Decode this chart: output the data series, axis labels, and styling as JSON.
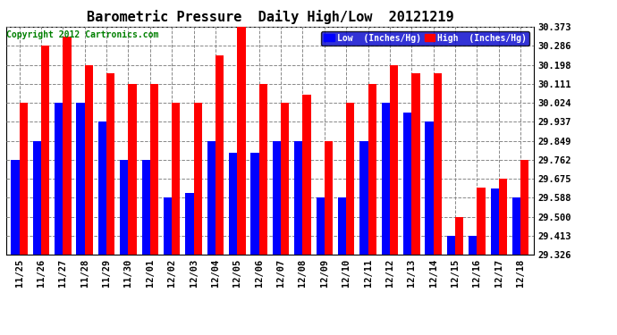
{
  "title": "Barometric Pressure  Daily High/Low  20121219",
  "copyright": "Copyright 2012 Cartronics.com",
  "dates": [
    "11/25",
    "11/26",
    "11/27",
    "11/28",
    "11/29",
    "11/30",
    "12/01",
    "12/02",
    "12/03",
    "12/04",
    "12/05",
    "12/06",
    "12/07",
    "12/08",
    "12/09",
    "12/10",
    "12/11",
    "12/12",
    "12/13",
    "12/14",
    "12/15",
    "12/16",
    "12/17",
    "12/18"
  ],
  "high": [
    30.024,
    30.286,
    30.326,
    30.198,
    30.16,
    30.111,
    30.111,
    30.024,
    30.024,
    30.242,
    30.373,
    30.111,
    30.024,
    30.06,
    29.849,
    30.024,
    30.111,
    30.198,
    30.16,
    30.16,
    29.5,
    29.634,
    29.675,
    29.762
  ],
  "low": [
    29.762,
    29.849,
    30.024,
    30.024,
    29.937,
    29.762,
    29.762,
    29.588,
    29.61,
    29.849,
    29.795,
    29.795,
    29.849,
    29.849,
    29.588,
    29.588,
    29.849,
    30.024,
    29.98,
    29.937,
    29.413,
    29.413,
    29.63,
    29.588
  ],
  "ylim_min": 29.326,
  "ylim_max": 30.373,
  "yticks": [
    29.326,
    29.413,
    29.5,
    29.588,
    29.675,
    29.762,
    29.849,
    29.937,
    30.024,
    30.111,
    30.198,
    30.286,
    30.373
  ],
  "high_color": "#ff0000",
  "low_color": "#0000ff",
  "bg_color": "#ffffff",
  "grid_color": "#888888",
  "title_fontsize": 11,
  "copyright_fontsize": 7,
  "tick_fontsize": 7.5
}
